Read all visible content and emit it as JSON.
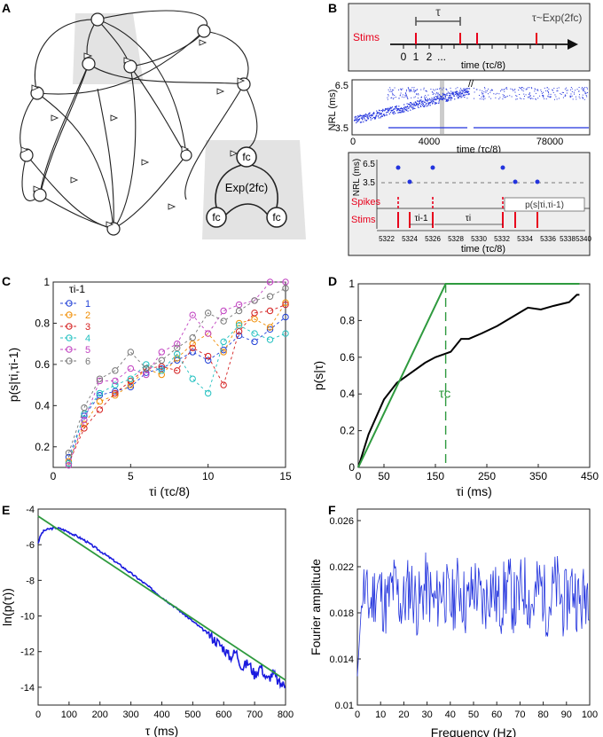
{
  "panel_labels": {
    "A": "A",
    "B": "B",
    "C": "C",
    "D": "D",
    "E": "E",
    "F": "F"
  },
  "colors": {
    "red": "#e8001c",
    "blue": "#2233dd",
    "green": "#2e9a3e",
    "gray_bg": "#e3e3e3",
    "dark": "#222222"
  },
  "panelA": {
    "inset_title": "Exp(2fc)",
    "node_labels": [
      "fc",
      "fc",
      "fc"
    ]
  },
  "panelB": {
    "top": {
      "stims_label": "Stims",
      "tau_label": "τ",
      "dist_label": "τ~Exp(2fc)",
      "ticks": [
        "0",
        "1",
        "2",
        "..."
      ],
      "xlabel": "time (τc/8)"
    },
    "mid": {
      "ylabel": "NRL (ms)",
      "yticks": [
        "6.5",
        "3.5"
      ],
      "xticks": [
        "0",
        "4000",
        "78000"
      ],
      "xlabel": "time (τc/8)",
      "break_mark": "//"
    },
    "bot": {
      "ylabel": "NRL (ms)",
      "yticks": [
        "6.5",
        "3.5"
      ],
      "spikes_label": "Spikes",
      "stims_label": "Stims",
      "tau_prev": "τi-1",
      "tau_i": "τi",
      "prob_label": "p(s|τi,τi-1)",
      "xticks": [
        "5322",
        "5324",
        "5326",
        "5328",
        "5330",
        "5332",
        "5334",
        "5336",
        "5338",
        "5340"
      ],
      "xlabel": "time (τc/8)"
    }
  },
  "panelC": {
    "chart_data": {
      "type": "line",
      "legend_title": "τi-1",
      "xlabel": "τi (τc/8)",
      "ylabel": "p(s|τi,τi-1)",
      "xlim": [
        0,
        15
      ],
      "ylim": [
        0.1,
        1
      ],
      "xticks": [
        "0",
        "5",
        "10",
        "15"
      ],
      "yticks": [
        "0.2",
        "0.4",
        "0.6",
        "0.8",
        "1"
      ],
      "x": [
        1,
        2,
        3,
        4,
        5,
        6,
        7,
        8,
        9,
        10,
        11,
        12,
        13,
        14,
        15
      ],
      "series": [
        {
          "name": "1",
          "color": "#1f3fd6",
          "values": [
            0.15,
            0.35,
            0.45,
            0.47,
            0.49,
            0.56,
            0.58,
            0.62,
            0.66,
            0.62,
            0.67,
            0.74,
            0.71,
            0.77,
            0.83
          ]
        },
        {
          "name": "2",
          "color": "#f08c00",
          "values": [
            0.13,
            0.31,
            0.42,
            0.45,
            0.5,
            0.58,
            0.55,
            0.63,
            0.7,
            0.75,
            0.66,
            0.8,
            0.82,
            0.78,
            0.9
          ]
        },
        {
          "name": "3",
          "color": "#d42020",
          "values": [
            0.12,
            0.29,
            0.38,
            0.46,
            0.52,
            0.58,
            0.59,
            0.57,
            0.68,
            0.64,
            0.5,
            0.76,
            0.85,
            0.86,
            0.89
          ]
        },
        {
          "name": "4",
          "color": "#22c0c0",
          "values": [
            0.12,
            0.36,
            0.46,
            0.5,
            0.53,
            0.6,
            0.57,
            0.65,
            0.53,
            0.46,
            0.71,
            0.79,
            0.75,
            0.72,
            0.75
          ]
        },
        {
          "name": "5",
          "color": "#c040c0",
          "values": [
            0.11,
            0.33,
            0.52,
            0.52,
            0.58,
            0.55,
            0.66,
            0.7,
            0.84,
            0.75,
            0.86,
            0.89,
            0.91,
            1.0,
            1.0
          ]
        },
        {
          "name": "6",
          "color": "#777777",
          "values": [
            0.17,
            0.39,
            0.53,
            0.57,
            0.66,
            0.58,
            0.62,
            0.68,
            0.73,
            0.85,
            0.81,
            0.86,
            0.91,
            0.93,
            0.97
          ]
        }
      ]
    }
  },
  "panelD": {
    "chart_data": {
      "type": "line",
      "xlabel": "τi (ms)",
      "ylabel": "p(s|τ)",
      "tau_label": "τc",
      "xlim": [
        0,
        450
      ],
      "ylim": [
        0,
        1
      ],
      "xticks": [
        "0",
        "50",
        "150",
        "250",
        "350",
        "450"
      ],
      "yticks": [
        "0",
        "0.2",
        "0.4",
        "0.6",
        "0.8",
        "1"
      ],
      "tau_c": 170,
      "series": [
        {
          "name": "empirical",
          "color": "#000000",
          "x": [
            0,
            20,
            50,
            75,
            100,
            130,
            150,
            170,
            180,
            200,
            215,
            240,
            270,
            300,
            330,
            355,
            380,
            410,
            425,
            430
          ],
          "y": [
            0,
            0.18,
            0.37,
            0.46,
            0.51,
            0.57,
            0.6,
            0.62,
            0.63,
            0.7,
            0.7,
            0.73,
            0.77,
            0.82,
            0.87,
            0.86,
            0.88,
            0.9,
            0.94,
            0.94
          ]
        },
        {
          "name": "model",
          "color": "#2e9a3e",
          "x": [
            0,
            170,
            430
          ],
          "y": [
            0,
            1,
            1
          ]
        }
      ]
    }
  },
  "panelE": {
    "chart_data": {
      "type": "line",
      "xlabel": "τ (ms)",
      "ylabel": "ln(p(τ))",
      "xlim": [
        0,
        800
      ],
      "ylim": [
        -15,
        -4
      ],
      "xticks": [
        "0",
        "100",
        "200",
        "300",
        "400",
        "500",
        "600",
        "700",
        "800"
      ],
      "yticks": [
        "-4",
        "-6",
        "-8",
        "-10",
        "-12",
        "-14"
      ],
      "series": [
        {
          "name": "data",
          "color": "#1a1adf",
          "x": [
            0,
            10,
            20,
            40,
            60,
            80,
            100,
            150,
            200,
            250,
            300,
            350,
            400,
            450,
            500,
            550,
            600,
            620,
            640,
            660,
            680,
            700,
            720,
            740,
            760,
            780,
            800
          ],
          "y": [
            -5.9,
            -5.4,
            -5.2,
            -5.1,
            -5.05,
            -5.15,
            -5.3,
            -5.75,
            -6.35,
            -6.95,
            -7.6,
            -8.25,
            -8.95,
            -9.6,
            -10.3,
            -11.0,
            -11.8,
            -12.3,
            -12.0,
            -12.9,
            -12.6,
            -13.3,
            -12.8,
            -13.6,
            -13.2,
            -13.8,
            -13.9
          ]
        },
        {
          "name": "fit",
          "color": "#2e9a3e",
          "x": [
            0,
            800
          ],
          "y": [
            -4.4,
            -13.6
          ]
        }
      ]
    }
  },
  "panelF": {
    "chart_data": {
      "type": "line",
      "xlabel": "Frequency (Hz)",
      "ylabel": "Fourier amplitude",
      "xlim": [
        0,
        100
      ],
      "ylim": [
        0.01,
        0.027
      ],
      "xticks": [
        "0",
        "10",
        "20",
        "30",
        "40",
        "50",
        "60",
        "70",
        "80",
        "90",
        "100"
      ],
      "yticks": [
        "0.01",
        "0.014",
        "0.018",
        "0.022",
        "0.026"
      ],
      "series": [
        {
          "name": "spectrum",
          "color": "#2233dd",
          "baseline": 0.0195,
          "start": 0.0125,
          "x_range": [
            0,
            100
          ]
        }
      ]
    }
  }
}
